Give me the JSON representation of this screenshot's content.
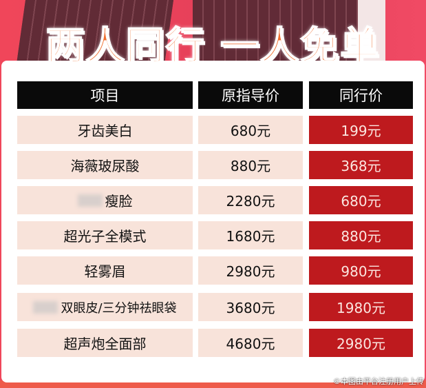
{
  "banner": {
    "title": "两人同行 一人免单"
  },
  "table": {
    "headers": [
      "项目",
      "原指导价",
      "同行价"
    ],
    "rows": [
      {
        "item": "牙齿美白",
        "original": "680元",
        "group": "199元",
        "blurred": false
      },
      {
        "item": "海薇玻尿酸",
        "original": "880元",
        "group": "368元",
        "blurred": false
      },
      {
        "item": "瘦脸",
        "original": "2280元",
        "group": "680元",
        "blurred": true
      },
      {
        "item": "超光子全模式",
        "original": "1680元",
        "group": "880元",
        "blurred": false
      },
      {
        "item": "轻雾眉",
        "original": "2980元",
        "group": "980元",
        "blurred": false
      },
      {
        "item": "双眼皮/三分钟祛眼袋",
        "original": "3680元",
        "group": "1980元",
        "blurred": true
      },
      {
        "item": "超声炮全面部",
        "original": "4680元",
        "group": "2980元",
        "blurred": false
      }
    ]
  },
  "watermark": "©本图由平台注册用户上传",
  "colors": {
    "header_bg": "#0a0a0a",
    "row_bg": "#f8e3da",
    "price_bg": "#be1a1e",
    "title": "#f07030",
    "background": "#e6405a"
  }
}
